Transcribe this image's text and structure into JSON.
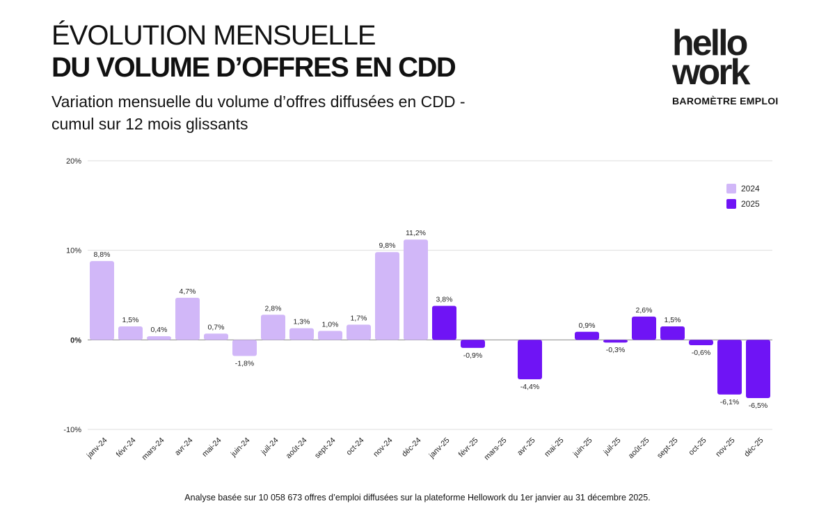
{
  "header": {
    "title_line1": "ÉVOLUTION MENSUELLE",
    "title_line2": "DU VOLUME D’OFFRES EN CDD",
    "subtitle_line1": "Variation mensuelle du volume d’offres diffusées en CDD -",
    "subtitle_line2": "cumul sur 12 mois glissants"
  },
  "brand": {
    "logo_line1": "hello",
    "logo_line2": "work",
    "tagline": "BAROMÈTRE EMPLOI"
  },
  "colors": {
    "series_2024": "#d1b7f8",
    "series_2025": "#6f14f5",
    "grid": "#dedede",
    "zero_line": "#888888"
  },
  "footer": {
    "note": "Analyse basée sur 10 058 673 offres d’emploi diffusées sur la plateforme Hellowork du 1er janvier au 31 décembre 2025."
  },
  "chart_data": {
    "type": "bar",
    "title": "Variation mensuelle du volume d’offres diffusées en CDD - cumul sur 12 mois glissants",
    "xlabel": "",
    "ylabel": "",
    "ylim": [
      -10,
      20
    ],
    "yticks": [
      20,
      10,
      0,
      -10
    ],
    "ytick_labels": [
      "20%",
      "10%",
      "0%",
      "-10%"
    ],
    "grid": true,
    "legend_position": "top-right",
    "categories": [
      "janv-24",
      "févr-24",
      "mars-24",
      "avr-24",
      "mai-24",
      "juin-24",
      "juil-24",
      "août-24",
      "sept-24",
      "oct-24",
      "nov-24",
      "déc-24",
      "janv-25",
      "févr-25",
      "mars-25",
      "avr-25",
      "mai-25",
      "juin-25",
      "juil-25",
      "août-25",
      "sept-25",
      "oct-25",
      "nov-25",
      "déc-25"
    ],
    "series": [
      {
        "name": "2024",
        "color": "#d1b7f8",
        "values": [
          8.8,
          1.5,
          0.4,
          4.7,
          0.7,
          -1.8,
          2.8,
          1.3,
          1.0,
          1.7,
          9.8,
          11.2,
          null,
          null,
          null,
          null,
          null,
          null,
          null,
          null,
          null,
          null,
          null,
          null
        ],
        "labels": [
          "8,8%",
          "1,5%",
          "0,4%",
          "4,7%",
          "0,7%",
          "-1,8%",
          "2,8%",
          "1,3%",
          "1,0%",
          "1,7%",
          "9,8%",
          "11,2%",
          null,
          null,
          null,
          null,
          null,
          null,
          null,
          null,
          null,
          null,
          null,
          null
        ]
      },
      {
        "name": "2025",
        "color": "#6f14f5",
        "values": [
          null,
          null,
          null,
          null,
          null,
          null,
          null,
          null,
          null,
          null,
          null,
          null,
          3.8,
          -0.9,
          null,
          -4.4,
          null,
          0.9,
          -0.3,
          2.6,
          1.5,
          -0.6,
          -6.1,
          -6.5
        ],
        "labels": [
          null,
          null,
          null,
          null,
          null,
          null,
          null,
          null,
          null,
          null,
          null,
          null,
          "3,8%",
          "-0,9%",
          null,
          "-4,4%",
          null,
          "0,9%",
          "-0,3%",
          "2,6%",
          "1,5%",
          "-0,6%",
          "-6,1%",
          "-6,5%"
        ]
      }
    ]
  }
}
